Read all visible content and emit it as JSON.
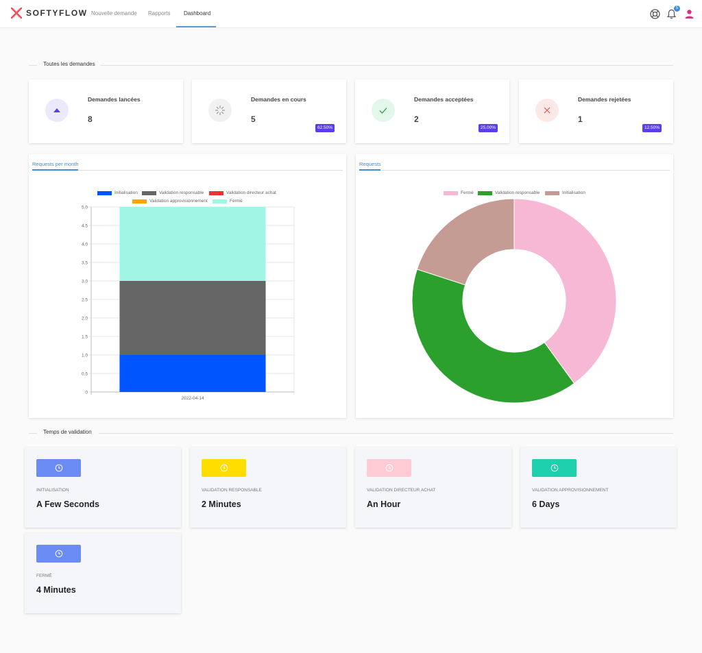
{
  "app": {
    "brand": "SOFTYFLOW"
  },
  "nav": [
    {
      "label": "Nouvelle demande"
    },
    {
      "label": "Rapports"
    },
    {
      "label": "Dashboard"
    }
  ],
  "header": {
    "notification_count": "5"
  },
  "section_requests": {
    "title": "Toutes les demandes"
  },
  "stats": [
    {
      "label": "Demandes lancées",
      "value": "8",
      "icon": "arrow-up-icon",
      "color": "#5c3ee8"
    },
    {
      "label": "Demandes en cours",
      "value": "5",
      "badge": "62.50%",
      "icon": "spinner-icon",
      "color": "#888888"
    },
    {
      "label": "Demandes acceptées",
      "value": "2",
      "badge": "25.00%",
      "icon": "check-icon",
      "color": "#2ea44f"
    },
    {
      "label": "Demandes rejetées",
      "value": "1",
      "badge": "12.50%",
      "icon": "close-icon",
      "color": "#e05555"
    }
  ],
  "charts": {
    "left_tab": "Requests per month",
    "right_tab": "Requests"
  },
  "chart_data": [
    {
      "type": "bar",
      "stacked": true,
      "categories": [
        "2022-04-14"
      ],
      "series": [
        {
          "name": "Initialisation",
          "values": [
            1
          ],
          "color": "#0055ff"
        },
        {
          "name": "Validation responsable",
          "values": [
            2
          ],
          "color": "#666666"
        },
        {
          "name": "Validation directeur achat",
          "values": [
            0
          ],
          "color": "#ee3333"
        },
        {
          "name": "Validation approvisionnement",
          "values": [
            0
          ],
          "color": "#ffa500"
        },
        {
          "name": "Fermé",
          "values": [
            2
          ],
          "color": "#a0f5e5"
        }
      ],
      "ylim": [
        0,
        5
      ],
      "yticks": [
        "0",
        "0.5",
        "1.0",
        "1.5",
        "2.0",
        "2.5",
        "3.0",
        "3.5",
        "4.0",
        "4.5",
        "5.0"
      ],
      "legend": "top",
      "grid": true
    },
    {
      "type": "pie",
      "donut": true,
      "labels": [
        "Fermé",
        "Validation responsable",
        "Initialisation"
      ],
      "values": [
        2,
        2,
        1
      ],
      "colors": [
        "#f6b8d4",
        "#2ca02c",
        "#c49c94"
      ],
      "legend": "top"
    }
  ],
  "section_validation": {
    "title": "Temps de validation"
  },
  "validation": [
    {
      "label": "INITIALISATION",
      "value": "A Few Seconds",
      "color": "#6b8cf5"
    },
    {
      "label": "VALIDATION RESPONSABLE",
      "value": "2 Minutes",
      "color": "#ffdd00"
    },
    {
      "label": "VALIDATION DIRECTEUR ACHAT",
      "value": "An Hour",
      "color": "#ffccd5"
    },
    {
      "label": "VALIDATION APPROVISIONNEMENT",
      "value": "6 Days",
      "color": "#1ecfae"
    },
    {
      "label": "FERMÉ",
      "value": "4 Minutes",
      "color": "#6b8cf5"
    }
  ]
}
